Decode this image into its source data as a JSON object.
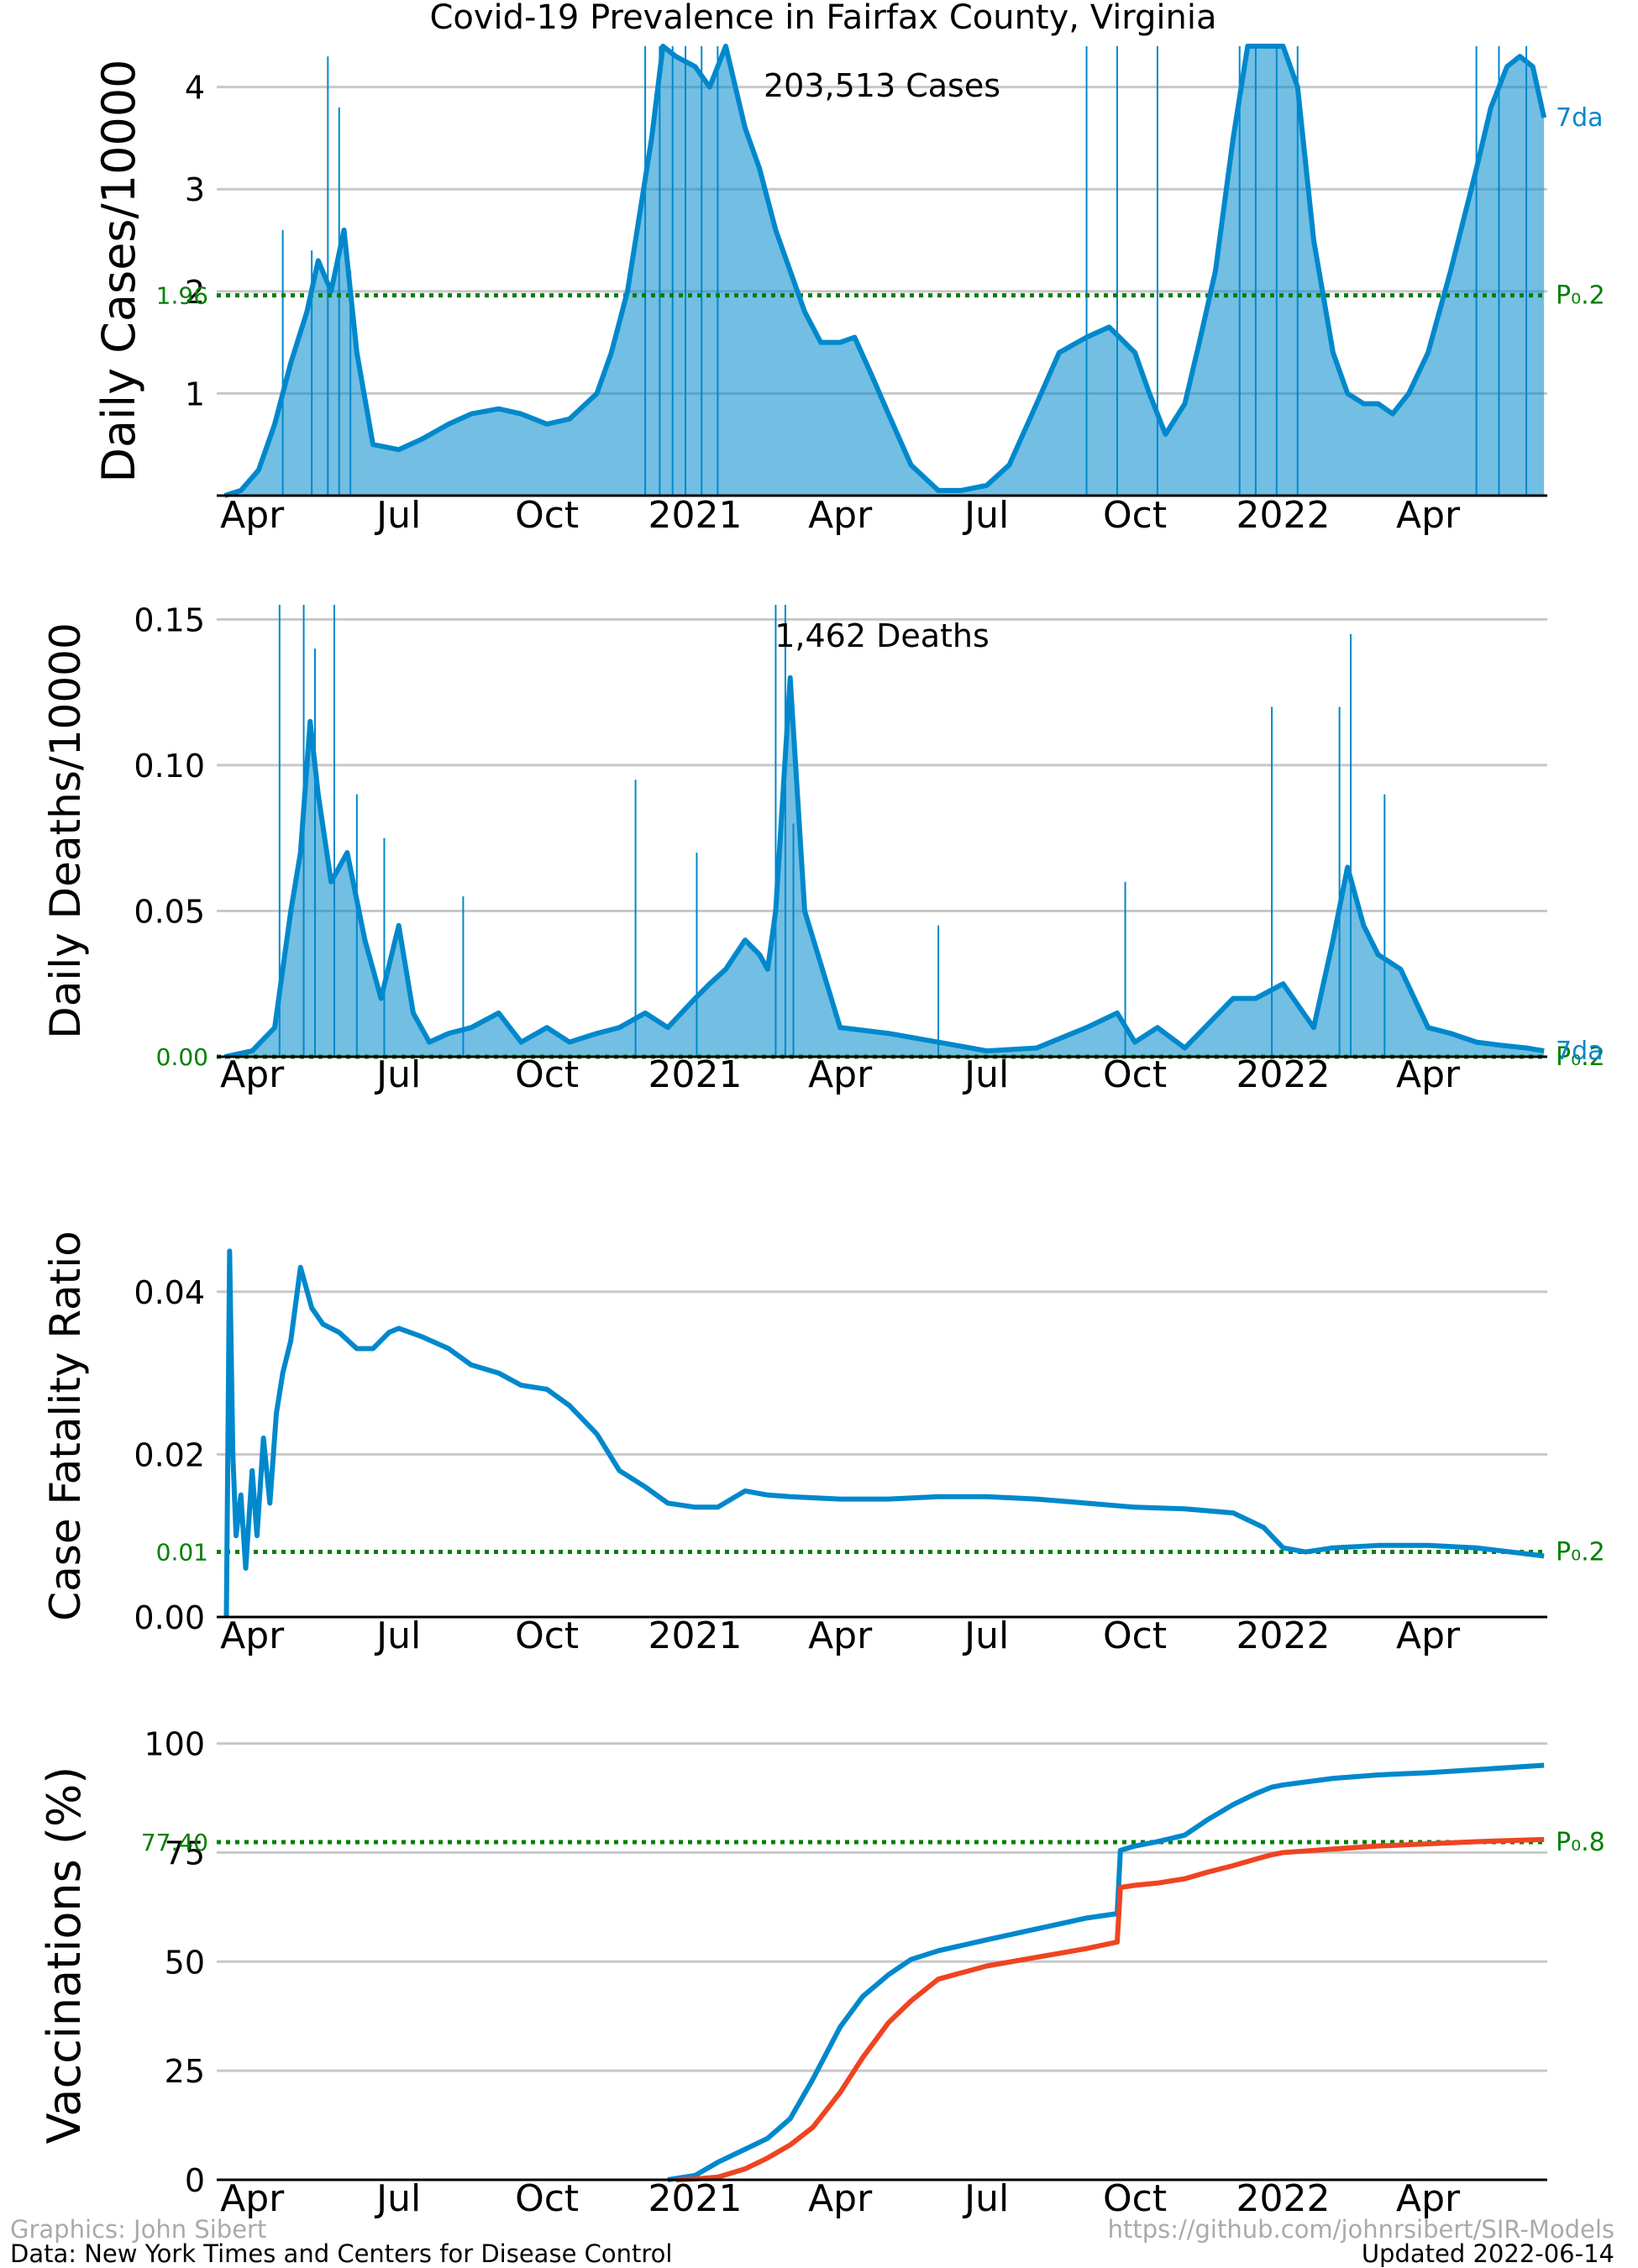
{
  "figure": {
    "title": "Covid-19 Prevalence in Fairfax County, Virginia",
    "footer_left_1": "Graphics: John Sibert",
    "footer_left_2": "Data: New York Times and Centers for Disease Control",
    "footer_right_1": "https://github.com/johnrsibert/SIR-Models",
    "footer_right_2": "Updated 2022-06-14"
  },
  "colors": {
    "series_blue": "#0088cc",
    "series_red": "#ee4422",
    "reference_green": "#008000",
    "grid": "#c8c8c8",
    "text": "#000000",
    "footer_light": "#aaaaaa"
  },
  "time_axis": {
    "tick_labels": [
      "Apr",
      "Jul",
      "Oct",
      "2021",
      "Apr",
      "Jul",
      "Oct",
      "2022",
      "Apr"
    ],
    "tick_dates": [
      "2020-04-01",
      "2020-07-01",
      "2020-10-01",
      "2021-01-01",
      "2021-04-01",
      "2021-07-01",
      "2021-10-01",
      "2022-01-01",
      "2022-04-01"
    ],
    "xlim": [
      "2020-03-10",
      "2022-06-14"
    ]
  },
  "chart_data": [
    {
      "type": "bar",
      "ylabel": "Daily Cases/10000",
      "annotation": "203,513 Cases",
      "ylim": [
        0,
        4.4
      ],
      "yticks": [
        1,
        2,
        3,
        4
      ],
      "grid": true,
      "reference": {
        "value": 1.96,
        "value_label": "1.96",
        "right_label": "P₀.2"
      },
      "series": [
        {
          "name": "7da",
          "kind": "line",
          "x": [
            "2020-03-15",
            "2020-03-25",
            "2020-04-05",
            "2020-04-15",
            "2020-04-25",
            "2020-05-05",
            "2020-05-12",
            "2020-05-20",
            "2020-05-28",
            "2020-06-05",
            "2020-06-15",
            "2020-07-01",
            "2020-07-15",
            "2020-08-01",
            "2020-08-15",
            "2020-09-01",
            "2020-09-15",
            "2020-10-01",
            "2020-10-15",
            "2020-11-01",
            "2020-11-10",
            "2020-11-20",
            "2020-11-28",
            "2020-12-05",
            "2020-12-12",
            "2020-12-20",
            "2021-01-01",
            "2021-01-10",
            "2021-01-20",
            "2021-02-01",
            "2021-02-10",
            "2021-02-20",
            "2021-03-01",
            "2021-03-10",
            "2021-03-20",
            "2021-04-01",
            "2021-04-10",
            "2021-04-20",
            "2021-05-01",
            "2021-05-15",
            "2021-06-01",
            "2021-06-15",
            "2021-07-01",
            "2021-07-15",
            "2021-08-01",
            "2021-08-15",
            "2021-09-01",
            "2021-09-15",
            "2021-10-01",
            "2021-10-10",
            "2021-10-20",
            "2021-11-01",
            "2021-11-10",
            "2021-11-20",
            "2021-12-01",
            "2021-12-10",
            "2021-12-20",
            "2022-01-01",
            "2022-01-10",
            "2022-01-20",
            "2022-02-01",
            "2022-02-10",
            "2022-02-20",
            "2022-03-01",
            "2022-03-10",
            "2022-03-20",
            "2022-04-01",
            "2022-04-15",
            "2022-05-01",
            "2022-05-10",
            "2022-05-20",
            "2022-05-28",
            "2022-06-05",
            "2022-06-12"
          ],
          "values": [
            0.0,
            0.05,
            0.25,
            0.7,
            1.3,
            1.8,
            2.3,
            2.0,
            2.6,
            1.4,
            0.5,
            0.45,
            0.55,
            0.7,
            0.8,
            0.85,
            0.8,
            0.7,
            0.75,
            1.0,
            1.4,
            2.0,
            2.8,
            3.5,
            4.4,
            4.3,
            4.2,
            4.0,
            4.4,
            3.6,
            3.2,
            2.6,
            2.2,
            1.8,
            1.5,
            1.5,
            1.55,
            1.2,
            0.8,
            0.3,
            0.05,
            0.05,
            0.1,
            0.3,
            0.9,
            1.4,
            1.55,
            1.65,
            1.4,
            1.0,
            0.6,
            0.9,
            1.5,
            2.2,
            3.5,
            4.5,
            4.6,
            4.5,
            4.0,
            2.5,
            1.4,
            1.0,
            0.9,
            0.9,
            0.8,
            1.0,
            1.4,
            2.2,
            3.2,
            3.8,
            4.2,
            4.3,
            4.2,
            3.7
          ]
        },
        {
          "name": "daily",
          "kind": "bars",
          "x": [
            "2020-04-20",
            "2020-05-08",
            "2020-05-18",
            "2020-05-25",
            "2020-06-01",
            "2020-12-01",
            "2020-12-10",
            "2020-12-18",
            "2020-12-26",
            "2021-01-05",
            "2021-01-15",
            "2021-09-01",
            "2021-09-20",
            "2021-10-15",
            "2021-12-05",
            "2021-12-15",
            "2021-12-28",
            "2022-01-10",
            "2022-05-01",
            "2022-05-15",
            "2022-06-01"
          ],
          "values": [
            2.6,
            2.4,
            4.3,
            3.8,
            2.2,
            4.4,
            4.4,
            4.4,
            4.4,
            4.4,
            4.4,
            4.4,
            4.4,
            4.4,
            4.4,
            4.4,
            4.4,
            4.4,
            4.4,
            4.4,
            4.4
          ]
        }
      ]
    },
    {
      "type": "bar",
      "ylabel": "Daily Deaths/10000",
      "annotation": "1,462 Deaths",
      "ylim": [
        0,
        0.155
      ],
      "yticks": [
        0.05,
        0.1,
        0.15
      ],
      "ytick_labels": [
        "0.05",
        "0.10",
        "0.15"
      ],
      "grid": true,
      "reference": {
        "value": 0.0,
        "value_label": "0.00",
        "right_label": "P₀.2"
      },
      "series": [
        {
          "name": "7da",
          "kind": "line",
          "x": [
            "2020-03-15",
            "2020-04-01",
            "2020-04-15",
            "2020-04-25",
            "2020-05-01",
            "2020-05-07",
            "2020-05-12",
            "2020-05-20",
            "2020-05-30",
            "2020-06-10",
            "2020-06-20",
            "2020-07-01",
            "2020-07-10",
            "2020-07-20",
            "2020-08-01",
            "2020-08-15",
            "2020-09-01",
            "2020-09-15",
            "2020-10-01",
            "2020-10-15",
            "2020-11-01",
            "2020-11-15",
            "2020-12-01",
            "2020-12-15",
            "2021-01-01",
            "2021-01-10",
            "2021-01-20",
            "2021-02-01",
            "2021-02-10",
            "2021-02-15",
            "2021-02-20",
            "2021-03-01",
            "2021-03-10",
            "2021-04-01",
            "2021-05-01",
            "2021-06-01",
            "2021-07-01",
            "2021-08-01",
            "2021-09-01",
            "2021-09-20",
            "2021-10-01",
            "2021-10-15",
            "2021-11-01",
            "2021-12-01",
            "2021-12-15",
            "2022-01-01",
            "2022-01-20",
            "2022-02-01",
            "2022-02-10",
            "2022-02-20",
            "2022-03-01",
            "2022-03-15",
            "2022-04-01",
            "2022-04-15",
            "2022-05-01",
            "2022-05-15",
            "2022-06-01",
            "2022-06-12"
          ],
          "values": [
            0.0,
            0.002,
            0.01,
            0.05,
            0.07,
            0.115,
            0.09,
            0.06,
            0.07,
            0.04,
            0.02,
            0.045,
            0.015,
            0.005,
            0.008,
            0.01,
            0.015,
            0.005,
            0.01,
            0.005,
            0.008,
            0.01,
            0.015,
            0.01,
            0.02,
            0.025,
            0.03,
            0.04,
            0.035,
            0.03,
            0.05,
            0.13,
            0.05,
            0.01,
            0.008,
            0.005,
            0.002,
            0.003,
            0.01,
            0.015,
            0.005,
            0.01,
            0.003,
            0.02,
            0.02,
            0.025,
            0.01,
            0.04,
            0.065,
            0.045,
            0.035,
            0.03,
            0.01,
            0.008,
            0.005,
            0.004,
            0.003,
            0.002
          ]
        },
        {
          "name": "daily",
          "kind": "bars",
          "x": [
            "2020-04-18",
            "2020-05-03",
            "2020-05-10",
            "2020-05-22",
            "2020-06-05",
            "2020-06-22",
            "2020-08-10",
            "2020-11-25",
            "2021-01-02",
            "2021-02-20",
            "2021-02-26",
            "2021-03-03",
            "2021-06-01",
            "2021-09-25",
            "2021-12-25",
            "2022-02-05",
            "2022-02-12",
            "2022-03-05"
          ],
          "values": [
            0.155,
            0.155,
            0.14,
            0.155,
            0.09,
            0.075,
            0.055,
            0.095,
            0.07,
            0.155,
            0.155,
            0.08,
            0.045,
            0.06,
            0.12,
            0.12,
            0.145,
            0.09
          ]
        }
      ],
      "right_label_extra": "7da"
    },
    {
      "type": "line",
      "ylabel": "Case Fatality Ratio",
      "ylim": [
        0,
        0.047
      ],
      "yticks": [
        0.0,
        0.02,
        0.04
      ],
      "ytick_labels": [
        "0.00",
        "0.02",
        "0.04"
      ],
      "grid": true,
      "reference": {
        "value": 0.008,
        "value_label": "0.01",
        "right_label": "P₀.2"
      },
      "series": [
        {
          "name": "",
          "kind": "line",
          "x": [
            "2020-03-16",
            "2020-03-18",
            "2020-03-20",
            "2020-03-22",
            "2020-03-25",
            "2020-03-28",
            "2020-04-01",
            "2020-04-04",
            "2020-04-08",
            "2020-04-12",
            "2020-04-16",
            "2020-04-20",
            "2020-04-25",
            "2020-05-01",
            "2020-05-08",
            "2020-05-15",
            "2020-05-25",
            "2020-06-05",
            "2020-06-15",
            "2020-06-25",
            "2020-07-01",
            "2020-07-15",
            "2020-08-01",
            "2020-08-15",
            "2020-09-01",
            "2020-09-15",
            "2020-10-01",
            "2020-10-15",
            "2020-11-01",
            "2020-11-15",
            "2020-12-01",
            "2020-12-15",
            "2021-01-01",
            "2021-01-15",
            "2021-02-01",
            "2021-02-15",
            "2021-03-01",
            "2021-04-01",
            "2021-05-01",
            "2021-06-01",
            "2021-07-01",
            "2021-08-01",
            "2021-09-01",
            "2021-10-01",
            "2021-11-01",
            "2021-12-01",
            "2021-12-20",
            "2022-01-01",
            "2022-01-15",
            "2022-02-01",
            "2022-03-01",
            "2022-04-01",
            "2022-05-01",
            "2022-06-12"
          ],
          "values": [
            0.0,
            0.045,
            0.02,
            0.01,
            0.015,
            0.006,
            0.018,
            0.01,
            0.022,
            0.014,
            0.025,
            0.03,
            0.034,
            0.043,
            0.038,
            0.036,
            0.035,
            0.033,
            0.033,
            0.035,
            0.0355,
            0.0345,
            0.033,
            0.031,
            0.03,
            0.0285,
            0.028,
            0.026,
            0.0225,
            0.018,
            0.016,
            0.014,
            0.0135,
            0.0135,
            0.0155,
            0.015,
            0.0148,
            0.0145,
            0.0145,
            0.0148,
            0.0148,
            0.0145,
            0.014,
            0.0135,
            0.0133,
            0.0128,
            0.011,
            0.0085,
            0.008,
            0.0085,
            0.0088,
            0.0088,
            0.0085,
            0.0075
          ]
        }
      ]
    },
    {
      "type": "line",
      "ylabel": "Vaccinations (%)",
      "ylim": [
        0,
        103
      ],
      "yticks": [
        0,
        25,
        50,
        75,
        100
      ],
      "grid": true,
      "reference": {
        "value": 77.4,
        "value_label": "77.40",
        "right_label": "P₀.8"
      },
      "series": [
        {
          "name": "",
          "kind": "line",
          "color_key": "series_blue",
          "x": [
            "2020-12-15",
            "2021-01-01",
            "2021-01-15",
            "2021-02-01",
            "2021-02-15",
            "2021-03-01",
            "2021-03-15",
            "2021-04-01",
            "2021-04-15",
            "2021-05-01",
            "2021-05-15",
            "2021-06-01",
            "2021-07-01",
            "2021-08-01",
            "2021-09-01",
            "2021-09-20",
            "2021-09-22",
            "2021-10-01",
            "2021-10-15",
            "2021-11-01",
            "2021-11-15",
            "2021-12-01",
            "2021-12-15",
            "2021-12-25",
            "2022-01-01",
            "2022-02-01",
            "2022-03-01",
            "2022-04-01",
            "2022-05-01",
            "2022-06-12"
          ],
          "values": [
            0.0,
            1.0,
            4.0,
            7.0,
            9.5,
            14.0,
            23.0,
            35.0,
            42.0,
            47.0,
            50.5,
            52.5,
            55.0,
            57.5,
            60.0,
            61.0,
            75.5,
            76.5,
            77.5,
            79.0,
            82.5,
            86.0,
            88.5,
            90.0,
            90.5,
            92.0,
            92.8,
            93.3,
            94.0,
            95.0
          ]
        },
        {
          "name": "",
          "kind": "line",
          "color_key": "series_red",
          "x": [
            "2020-12-20",
            "2021-01-01",
            "2021-01-15",
            "2021-02-01",
            "2021-02-15",
            "2021-03-01",
            "2021-03-15",
            "2021-04-01",
            "2021-04-15",
            "2021-05-01",
            "2021-05-15",
            "2021-06-01",
            "2021-07-01",
            "2021-08-01",
            "2021-09-01",
            "2021-09-20",
            "2021-09-22",
            "2021-10-01",
            "2021-10-15",
            "2021-11-01",
            "2021-11-15",
            "2021-12-01",
            "2021-12-15",
            "2021-12-25",
            "2022-01-01",
            "2022-02-01",
            "2022-03-01",
            "2022-04-01",
            "2022-05-01",
            "2022-06-12"
          ],
          "values": [
            0.0,
            0.2,
            0.6,
            2.5,
            5.0,
            8.0,
            12.0,
            20.0,
            28.0,
            36.0,
            41.0,
            46.0,
            49.0,
            51.0,
            53.0,
            54.5,
            67.0,
            67.5,
            68.0,
            69.0,
            70.5,
            72.0,
            73.5,
            74.5,
            75.0,
            75.8,
            76.5,
            77.0,
            77.5,
            78.0
          ]
        }
      ]
    }
  ]
}
